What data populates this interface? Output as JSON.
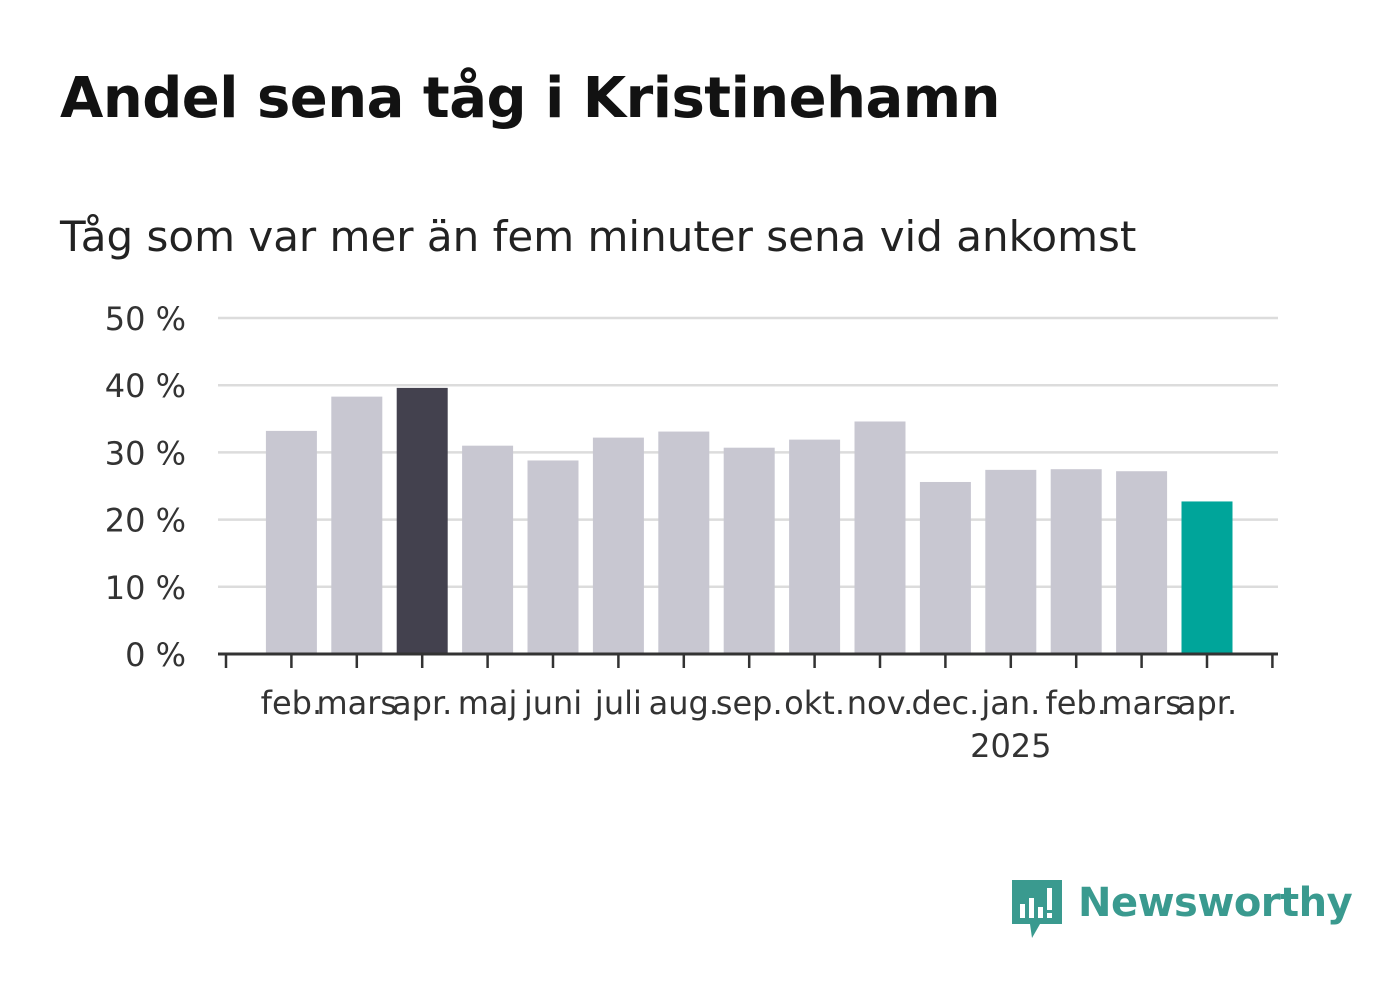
{
  "header": {
    "title": "Andel sena tåg i Kristinehamn",
    "subtitle": "Tåg som var mer än fem minuter sena vid ankomst"
  },
  "logo": {
    "text": "Newsworthy",
    "icon": "newsworthy-bar-icon",
    "color": "#3a9a8f"
  },
  "colors": {
    "default_bar": "#c8c7d1",
    "highlight_previous": "#43414e",
    "highlight_current": "#00a59a",
    "grid": "#dcdcdc",
    "axis": "#333333"
  },
  "chart_data": {
    "type": "bar",
    "categories": [
      "feb.",
      "mars",
      "apr.",
      "maj",
      "juni",
      "juli",
      "aug.",
      "sep.",
      "okt.",
      "nov.",
      "dec.",
      "jan.",
      "feb.",
      "mars",
      "apr."
    ],
    "year_labels": [
      {
        "category_index": 11,
        "label": "2025"
      }
    ],
    "values": [
      33.2,
      38.3,
      39.6,
      31.0,
      28.8,
      32.2,
      33.1,
      30.7,
      31.9,
      34.6,
      25.6,
      27.4,
      27.5,
      27.2,
      22.7
    ],
    "highlight": {
      "2": "highlight_previous",
      "14": "highlight_current"
    },
    "ylim": [
      0,
      50
    ],
    "yticks": [
      0,
      10,
      20,
      30,
      40,
      50
    ],
    "ytick_labels": [
      "0 %",
      "10 %",
      "20 %",
      "30 %",
      "40 %",
      "50 %"
    ],
    "grid": true,
    "xlabel": "",
    "ylabel": ""
  }
}
